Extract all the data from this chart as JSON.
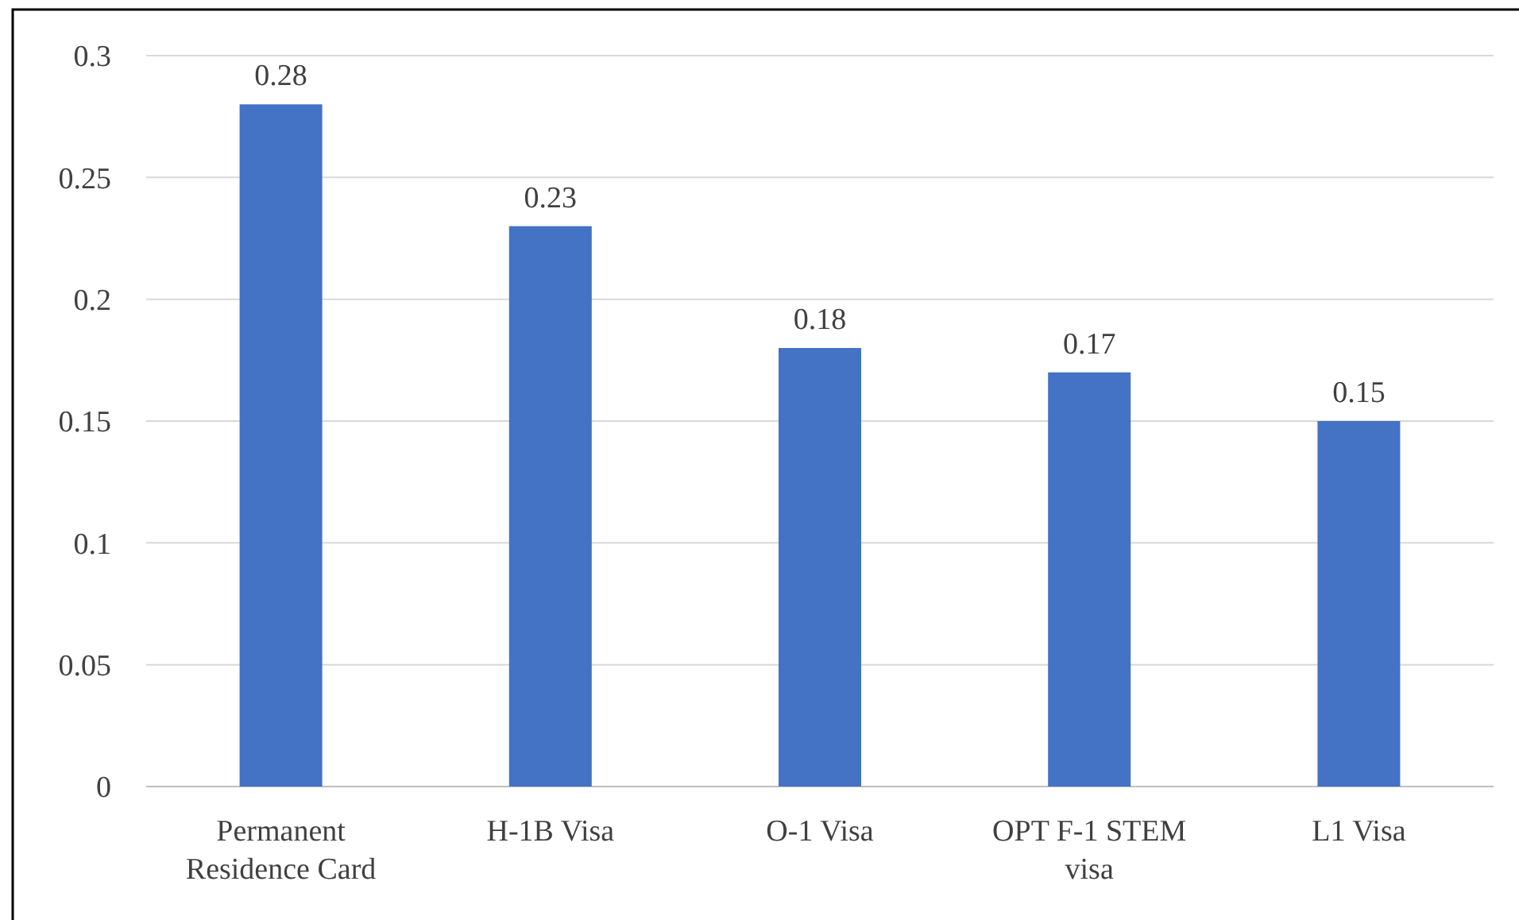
{
  "chart_data": {
    "type": "bar",
    "categories": [
      "Permanent Residence Card",
      "H-1B Visa",
      "O-1 Visa",
      "OPT F-1 STEM visa",
      "L1 Visa"
    ],
    "values": [
      0.28,
      0.23,
      0.18,
      0.17,
      0.15
    ],
    "color": "#4472c4",
    "ylim": [
      0,
      0.3
    ],
    "yticks": [
      0,
      0.05,
      0.1,
      0.15,
      0.2,
      0.25,
      0.3
    ],
    "grid": "y",
    "data_labels": true
  }
}
